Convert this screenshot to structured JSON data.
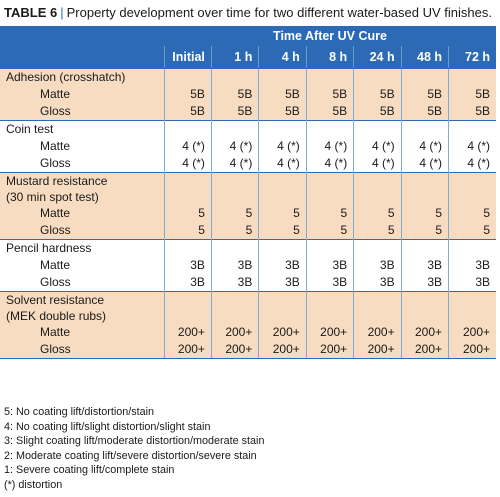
{
  "caption": {
    "label": "TABLE 6",
    "separator": "|",
    "text": "Property development over time for two different water-based UV finishes."
  },
  "header": {
    "group": "Time After UV Cure",
    "columns": [
      "Initial",
      "1 h",
      "4 h",
      "8 h",
      "24 h",
      "48 h",
      "72 h"
    ]
  },
  "sections": [
    {
      "title": "Adhesion (crosshatch)",
      "rows": [
        {
          "label": "Matte",
          "values": [
            "5B",
            "5B",
            "5B",
            "5B",
            "5B",
            "5B",
            "5B"
          ]
        },
        {
          "label": "Gloss",
          "values": [
            "5B",
            "5B",
            "5B",
            "5B",
            "5B",
            "5B",
            "5B"
          ]
        }
      ]
    },
    {
      "title": "Coin test",
      "rows": [
        {
          "label": "Matte",
          "values": [
            "4 (*)",
            "4 (*)",
            "4 (*)",
            "4 (*)",
            "4 (*)",
            "4 (*)",
            "4 (*)"
          ]
        },
        {
          "label": "Gloss",
          "values": [
            "4 (*)",
            "4 (*)",
            "4 (*)",
            "4 (*)",
            "4 (*)",
            "4 (*)",
            "4 (*)"
          ]
        }
      ]
    },
    {
      "title_line1": "Mustard resistance",
      "title_line2": "(30 min spot test)",
      "rows": [
        {
          "label": "Matte",
          "values": [
            "5",
            "5",
            "5",
            "5",
            "5",
            "5",
            "5"
          ]
        },
        {
          "label": "Gloss",
          "values": [
            "5",
            "5",
            "5",
            "5",
            "5",
            "5",
            "5"
          ]
        }
      ]
    },
    {
      "title": "Pencil hardness",
      "rows": [
        {
          "label": "Matte",
          "values": [
            "3B",
            "3B",
            "3B",
            "3B",
            "3B",
            "3B",
            "3B"
          ]
        },
        {
          "label": "Gloss",
          "values": [
            "3B",
            "3B",
            "3B",
            "3B",
            "3B",
            "3B",
            "3B"
          ]
        }
      ]
    },
    {
      "title_line1": "Solvent resistance",
      "title_line2": "(MEK double rubs)",
      "rows": [
        {
          "label": "Matte",
          "values": [
            "200+",
            "200+",
            "200+",
            "200+",
            "200+",
            "200+",
            "200+"
          ]
        },
        {
          "label": "Gloss",
          "values": [
            "200+",
            "200+",
            "200+",
            "200+",
            "200+",
            "200+",
            "200+"
          ]
        }
      ]
    }
  ],
  "notes": [
    "5: No coating lift/distortion/stain",
    "4: No coating lift/slight distortion/slight stain",
    "3: Slight coating lift/moderate distortion/moderate stain",
    "2: Moderate coating lift/severe distortion/severe stain",
    "1: Severe coating lift/complete stain",
    "(*) distortion"
  ],
  "colors": {
    "header_blue": "#2c6ab6",
    "shade": "#f7dcc1",
    "separator_blue": "#2a6fb3"
  }
}
